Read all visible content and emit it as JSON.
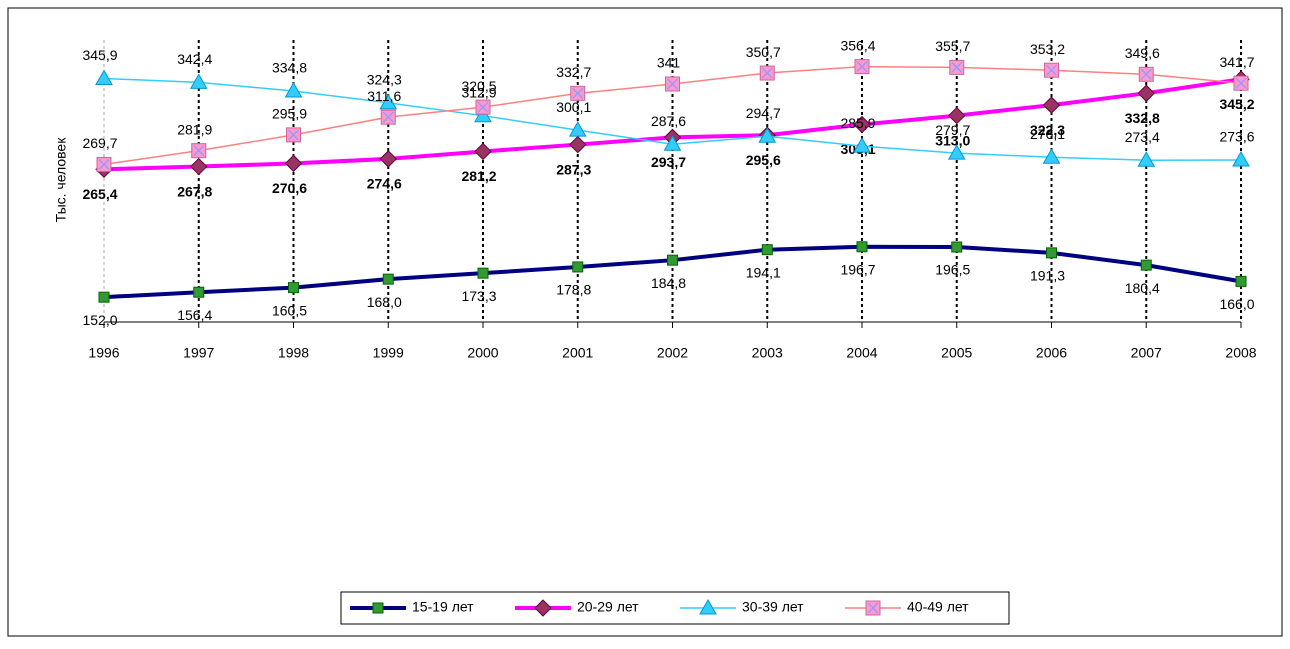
{
  "chart_data": {
    "type": "line",
    "y_label": "Тыс. человек",
    "categories": [
      "1996",
      "1997",
      "1998",
      "1999",
      "2000",
      "2001",
      "2002",
      "2003",
      "2004",
      "2005",
      "2006",
      "2007",
      "2008"
    ],
    "ylim": [
      130,
      380
    ],
    "xgrid": true,
    "legend": "bottom",
    "series": [
      {
        "name": "15-19 лет",
        "color": "#000080",
        "marker": "square",
        "marker_color": "#339933",
        "values": [
          152.0,
          156.4,
          160.5,
          168.0,
          173.3,
          178.8,
          184.8,
          194.1,
          196.7,
          196.5,
          191.3,
          180.4,
          166.0
        ],
        "value_labels": [
          "152,0",
          "156,4",
          "160,5",
          "168,0",
          "173,3",
          "178,8",
          "184,8",
          "194,1",
          "196,7",
          "196,5",
          "191,3",
          "180,4",
          "166,0"
        ]
      },
      {
        "name": "20-29 лет",
        "color": "#ff00ff",
        "marker": "diamond",
        "marker_color": "#993366",
        "values": [
          265.4,
          267.8,
          270.6,
          274.6,
          281.2,
          287.3,
          293.7,
          295.6,
          305.1,
          313.0,
          322.3,
          332.8,
          345.2
        ],
        "value_labels": [
          "265,4",
          "267,8",
          "270,6",
          "274,6",
          "281,2",
          "287,3",
          "293,7",
          "295,6",
          "305,1",
          "313,0",
          "322,3",
          "332,8",
          "345,2"
        ]
      },
      {
        "name": "30-39 лет",
        "color": "#33ccff",
        "marker": "triangle",
        "marker_color": "#33ccff",
        "values": [
          345.9,
          342.4,
          334.8,
          324.3,
          312.9,
          300.1,
          287.6,
          294.7,
          285.9,
          279.7,
          276.1,
          273.4,
          273.6
        ],
        "value_labels": [
          "345,9",
          "342,4",
          "334,8",
          "324,3",
          "312,9",
          "300,1",
          "287,6",
          "294,7",
          "285,9",
          "279,7",
          "276,1",
          "273,4",
          "273,6"
        ]
      },
      {
        "name": "40-49 лет",
        "color": "#ff8080",
        "marker": "xsquare",
        "marker_color": "#ff99cc",
        "values": [
          269.7,
          281.9,
          295.9,
          311.6,
          320.5,
          332.7,
          341,
          350.7,
          356.4,
          355.7,
          353.2,
          349.6,
          341.7
        ],
        "value_labels": [
          "269,7",
          "281,9",
          "295,9",
          "311,6",
          "320,5",
          "332,7",
          "341",
          "350,7",
          "356,4",
          "355,7",
          "353,2",
          "349,6",
          "341,7"
        ]
      }
    ]
  }
}
